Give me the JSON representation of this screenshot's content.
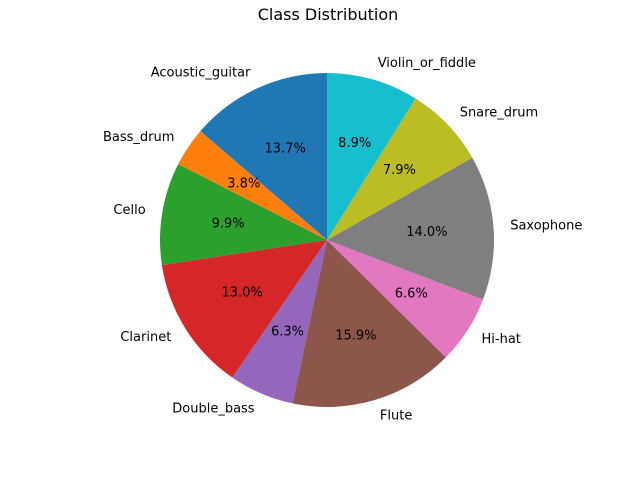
{
  "chart_data": {
    "type": "pie",
    "title": "Class Distribution",
    "start_angle_deg": 90,
    "direction": "counterclockwise",
    "categories": [
      "Acoustic_guitar",
      "Bass_drum",
      "Cello",
      "Clarinet",
      "Double_bass",
      "Flute",
      "Hi-hat",
      "Saxophone",
      "Snare_drum",
      "Violin_or_fiddle"
    ],
    "values": [
      13.7,
      3.8,
      9.9,
      13.0,
      6.3,
      15.9,
      6.6,
      14.0,
      7.9,
      8.9
    ],
    "percent_labels": [
      "13.7%",
      "3.8%",
      "9.9%",
      "13.0%",
      "6.3%",
      "15.9%",
      "6.6%",
      "14.0%",
      "7.9%",
      "8.9%"
    ],
    "colors": [
      "#1f77b4",
      "#ff7f0e",
      "#2ca02c",
      "#d62728",
      "#9467bd",
      "#8c564b",
      "#e377c2",
      "#7f7f7f",
      "#bcbd22",
      "#17becf"
    ]
  }
}
